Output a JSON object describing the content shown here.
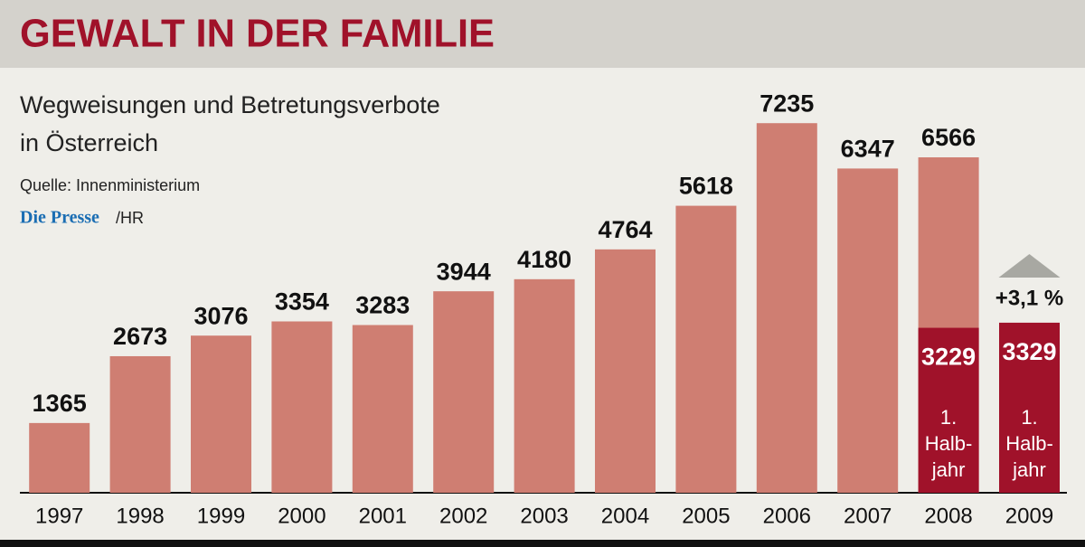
{
  "chart_data": {
    "type": "bar",
    "title": "GEWALT IN DER FAMILIE",
    "subtitle": [
      "Wegweisungen und Betretungsverbote",
      "in Österreich"
    ],
    "source": "Quelle: Innenministerium",
    "brand": "Die Presse",
    "credit": "/HR",
    "categories": [
      "1997",
      "1998",
      "1999",
      "2000",
      "2001",
      "2002",
      "2003",
      "2004",
      "2005",
      "2006",
      "2007",
      "2008",
      "2009"
    ],
    "series": [
      {
        "color": "#cf7e72",
        "values": [
          1365,
          2673,
          3076,
          3354,
          3283,
          3944,
          4180,
          4764,
          5618,
          7235,
          6347,
          6566,
          null
        ]
      },
      {
        "color": "#a0122a",
        "values": [
          null,
          null,
          null,
          null,
          null,
          null,
          null,
          null,
          null,
          null,
          null,
          3229,
          3329
        ]
      }
    ],
    "half_year_label": [
      "1.",
      "Halb-",
      "jahr"
    ],
    "change_label": "+3,1 %",
    "ylim": [
      0,
      8000
    ]
  }
}
